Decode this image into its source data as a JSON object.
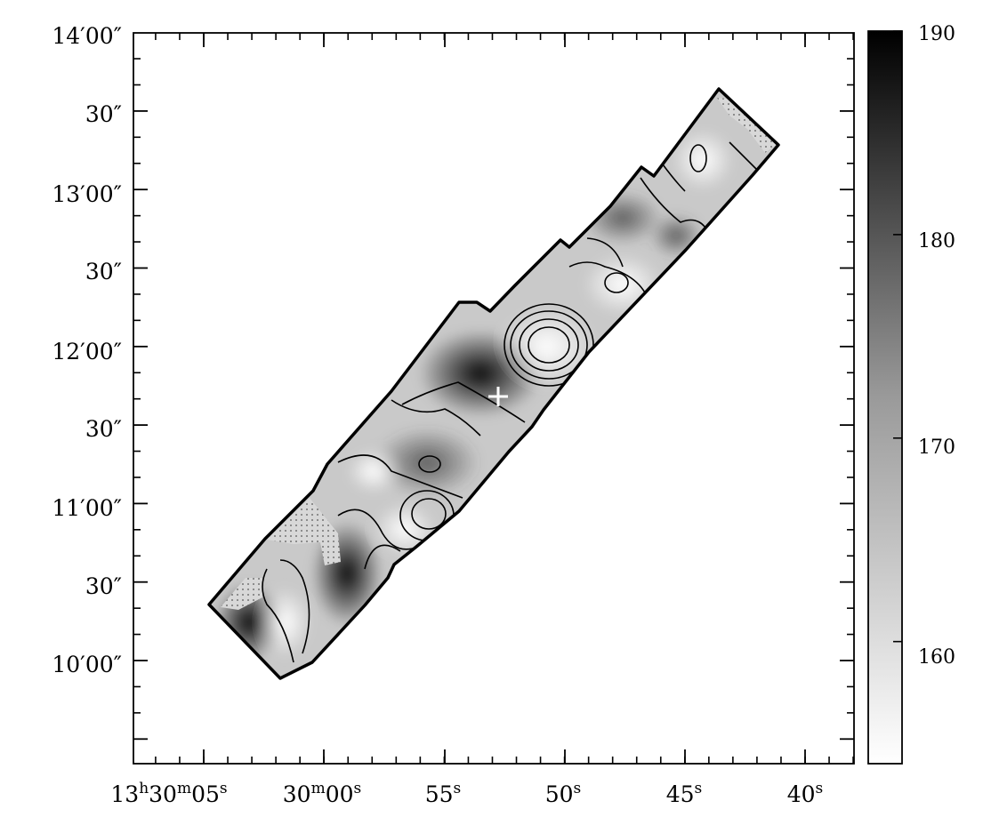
{
  "chart_data": {
    "type": "heatmap",
    "title": "",
    "xlabel": "",
    "ylabel": "",
    "x_tick_labels": [
      {
        "main": "13",
        "unit1": "h",
        "mid": "30",
        "unit2": "m",
        "end": "05",
        "unit3": "s",
        "ra_s": 5
      },
      {
        "main": "30",
        "unit1": "m",
        "mid": "00",
        "unit2": "s",
        "ra_s": 0
      },
      {
        "main": "55",
        "unit1": "s",
        "ra_s": -5
      },
      {
        "main": "50",
        "unit1": "s",
        "ra_s": -10
      },
      {
        "main": "45",
        "unit1": "s",
        "ra_s": -15
      },
      {
        "main": "40",
        "unit1": "s",
        "ra_s": -20
      }
    ],
    "y_tick_labels": [
      {
        "text": "14′  00″",
        "min": "14",
        "sec": "00",
        "offset_s": 240
      },
      {
        "text": "30″",
        "sec": "30",
        "offset_s": 210
      },
      {
        "min": "13",
        "sec": "00",
        "offset_s": 180
      },
      {
        "sec": "30",
        "offset_s": 150
      },
      {
        "min": "12",
        "sec": "00",
        "offset_s": 120
      },
      {
        "sec": "30",
        "offset_s": 90
      },
      {
        "min": "11",
        "sec": "00",
        "offset_s": 60
      },
      {
        "sec": "30",
        "offset_s": 30
      },
      {
        "min": "10",
        "sec": "00",
        "offset_s": 0
      }
    ],
    "xlim_ra_s": [
      8.0,
      -22.0
    ],
    "ylim_offset_s": [
      -30,
      246
    ],
    "colorbar": {
      "range": [
        154,
        190
      ],
      "ticks": [
        160,
        170,
        180,
        190
      ],
      "colormap": "white-to-black"
    },
    "strip_polygon": [
      [
        2.5,
        35
      ],
      [
        1.2,
        20
      ],
      [
        -1.2,
        15
      ],
      [
        -1.5,
        30
      ],
      [
        -3.0,
        50
      ],
      [
        -3.7,
        52
      ],
      [
        -7.5,
        110
      ],
      [
        -7.8,
        114
      ],
      [
        -10.8,
        145
      ],
      [
        -12.0,
        165
      ],
      [
        -15.2,
        200
      ],
      [
        -17.0,
        215
      ],
      [
        -20.0,
        232
      ],
      [
        -18.5,
        237
      ],
      [
        -17.0,
        218
      ],
      [
        -15.0,
        203
      ],
      [
        -14.7,
        198
      ],
      [
        -11.5,
        164
      ],
      [
        -10.2,
        163
      ],
      [
        -9.4,
        150
      ],
      [
        -7.3,
        134
      ],
      [
        -6.5,
        133
      ],
      [
        -4.5,
        97
      ],
      [
        -2.4,
        80
      ],
      [
        -0.6,
        55
      ],
      [
        0.7,
        55
      ],
      [
        1.4,
        43
      ]
    ],
    "peak_marker": {
      "ra_s": -6.3,
      "offset_s": 97,
      "symbol": "+"
    }
  }
}
